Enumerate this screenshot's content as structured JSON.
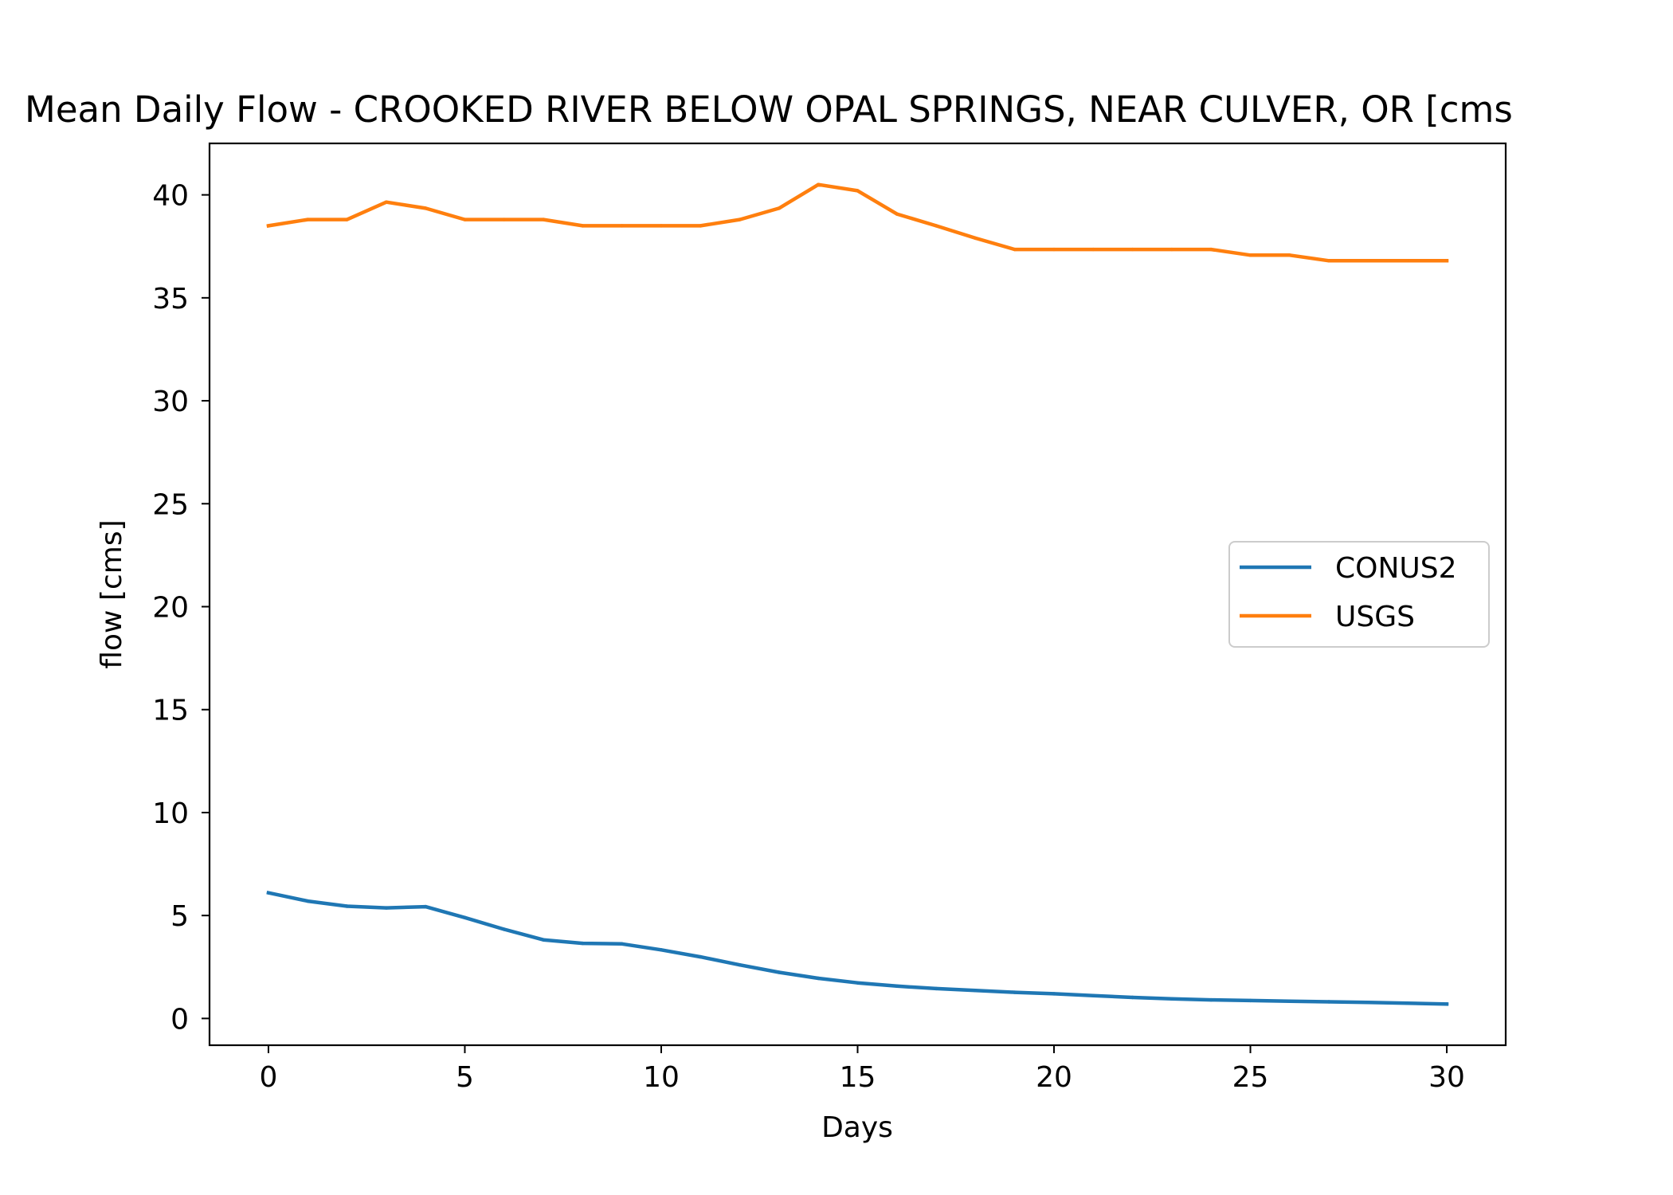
{
  "chart_data": {
    "type": "line",
    "title": "Mean Daily Flow - CROOKED RIVER BELOW OPAL SPRINGS, NEAR CULVER, OR [cms",
    "xlabel": "Days",
    "ylabel": "flow [cms]",
    "xlim": [
      -1.5,
      31.5
    ],
    "ylim": [
      -1.3,
      42.5
    ],
    "xticks": [
      0,
      5,
      10,
      15,
      20,
      25,
      30
    ],
    "yticks": [
      0,
      5,
      10,
      15,
      20,
      25,
      30,
      35,
      40
    ],
    "grid": false,
    "legend_position": "right",
    "x": [
      0,
      1,
      2,
      3,
      4,
      5,
      6,
      7,
      8,
      9,
      10,
      11,
      12,
      13,
      14,
      15,
      16,
      17,
      18,
      19,
      20,
      21,
      22,
      23,
      24,
      25,
      26,
      27,
      28,
      29,
      30
    ],
    "series": [
      {
        "name": "CONUS2",
        "color": "#1f77b4",
        "values": [
          6.1,
          5.7,
          5.45,
          5.37,
          5.43,
          4.9,
          4.33,
          3.82,
          3.65,
          3.62,
          3.33,
          2.99,
          2.6,
          2.24,
          1.95,
          1.73,
          1.57,
          1.45,
          1.36,
          1.27,
          1.2,
          1.11,
          1.02,
          0.95,
          0.9,
          0.87,
          0.84,
          0.81,
          0.78,
          0.74,
          0.7
        ]
      },
      {
        "name": "USGS",
        "color": "#ff7f0e",
        "values": [
          38.5,
          38.8,
          38.8,
          39.65,
          39.35,
          38.8,
          38.8,
          38.8,
          38.5,
          38.5,
          38.5,
          38.5,
          38.8,
          39.35,
          40.5,
          40.2,
          39.07,
          38.5,
          37.9,
          37.35,
          37.35,
          37.35,
          37.35,
          37.35,
          37.35,
          37.07,
          37.07,
          36.8,
          36.8,
          36.8,
          36.8
        ]
      }
    ]
  }
}
